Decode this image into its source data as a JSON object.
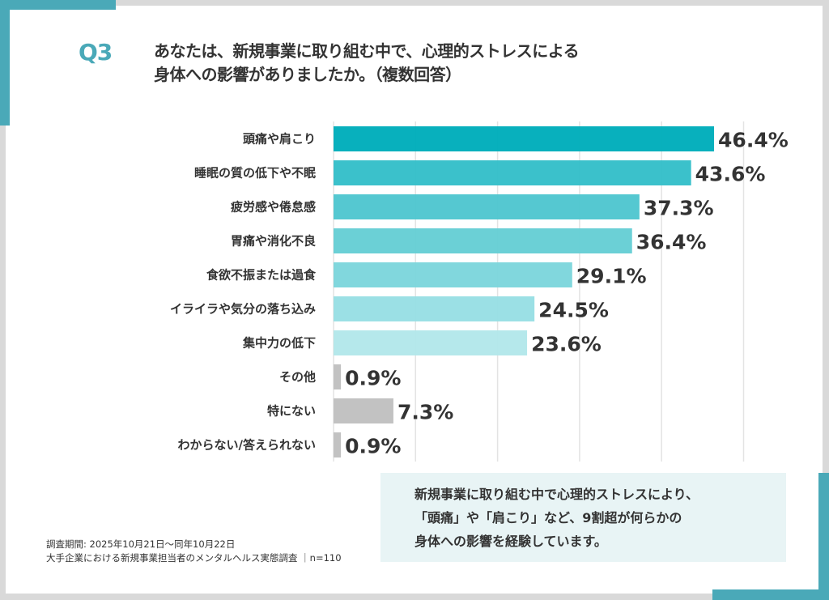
{
  "header": {
    "question_number": "Q3",
    "title_lines": [
      "あなたは、新規事業に取り組む中で、心理的ストレスによる",
      "身体への影響がありましたか。（複数回答）"
    ]
  },
  "colors": {
    "accent": "#4aa9b8",
    "frame": "#d9d9d9",
    "callout_bg": "#e8f4f5",
    "gridline": "#e3e3e3",
    "other_bar": "#c0c0c0"
  },
  "chart_data": {
    "type": "bar",
    "orientation": "horizontal",
    "title": "あなたは、新規事業に取り組む中で、心理的ストレスによる身体への影響がありましたか。（複数回答）",
    "xlabel": "",
    "ylabel": "",
    "xlim": [
      0,
      50
    ],
    "grid": true,
    "grid_interval": 10,
    "unit": "%",
    "categories": [
      "頭痛や肩こり",
      "睡眠の質の低下や不眠",
      "疲労感や倦怠感",
      "胃痛や消化不良",
      "食欲不振または過食",
      "イライラや気分の落ち込み",
      "集中力の低下",
      "その他",
      "特にない",
      "わからない/答えられない"
    ],
    "values": [
      46.4,
      43.6,
      37.3,
      36.4,
      29.1,
      24.5,
      23.6,
      0.9,
      7.3,
      0.9
    ],
    "value_labels": [
      "46.4%",
      "43.6%",
      "37.3%",
      "36.4%",
      "29.1%",
      "24.5%",
      "23.6%",
      "0.9%",
      "7.3%",
      "0.9%"
    ],
    "bar_colors": [
      "#00adbb",
      "#35bfc9",
      "#4fc6cf",
      "#66ced5",
      "#7dd6dc",
      "#98dfe4",
      "#b3e7ea",
      "#c0c0c0",
      "#c0c0c0",
      "#c0c0c0"
    ]
  },
  "callout": {
    "lines": [
      "新規事業に取り組む中で心理的ストレスにより、",
      "「頭痛」や「肩こり」など、9割超が何らかの",
      "身体への影響を経験しています。"
    ]
  },
  "footer": {
    "survey_period": "調査期間: 2025年10月21日～同年10月22日",
    "survey_name": "大手企業における新規事業担当者のメンタルヘルス実態調査 ｜n=110"
  }
}
